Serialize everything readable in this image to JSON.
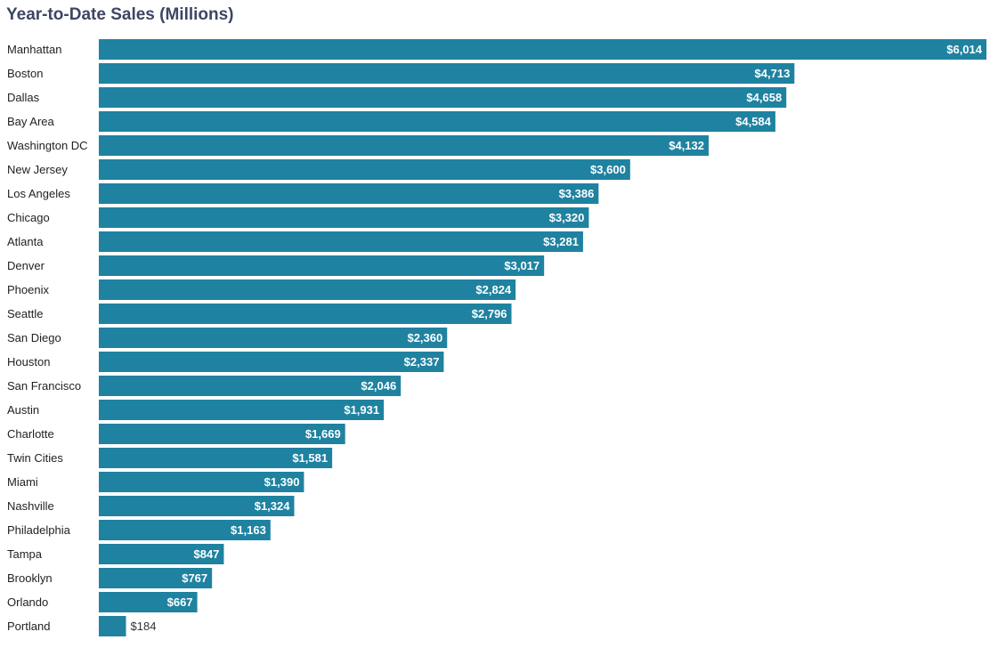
{
  "chart_data": {
    "type": "bar",
    "orientation": "horizontal",
    "title": "Year-to-Date Sales (Millions)",
    "xlabel": "",
    "ylabel": "",
    "grid": false,
    "legend": "none",
    "bar_color": "#1f82a0",
    "value_format": "$",
    "categories": [
      "Manhattan",
      "Boston",
      "Dallas",
      "Bay Area",
      "Washington DC",
      "New Jersey",
      "Los Angeles",
      "Chicago",
      "Atlanta",
      "Denver",
      "Phoenix",
      "Seattle",
      "San Diego",
      "Houston",
      "San Francisco",
      "Austin",
      "Charlotte",
      "Twin Cities",
      "Miami",
      "Nashville",
      "Philadelphia",
      "Tampa",
      "Brooklyn",
      "Orlando",
      "Portland"
    ],
    "values": [
      6014,
      4713,
      4658,
      4584,
      4132,
      3600,
      3386,
      3320,
      3281,
      3017,
      2824,
      2796,
      2360,
      2337,
      2046,
      1931,
      1669,
      1581,
      1390,
      1324,
      1163,
      847,
      767,
      667,
      184
    ]
  }
}
